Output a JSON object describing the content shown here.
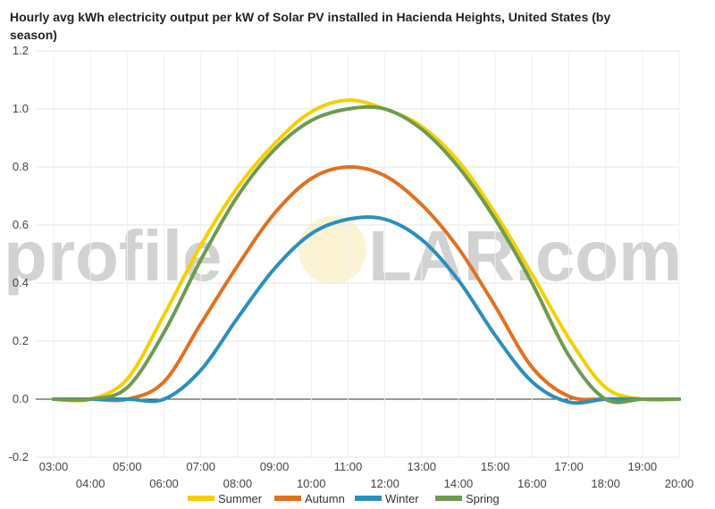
{
  "chart_data": {
    "type": "line",
    "title": "Hourly avg kWh electricity output per kW of Solar PV installed in Hacienda Heights, United States (by season)",
    "xlabel": "",
    "ylabel": "",
    "ylim": [
      -0.2,
      1.2
    ],
    "yticks": [
      "-0.2",
      "0.0",
      "0.2",
      "0.4",
      "0.6",
      "0.8",
      "1.0",
      "1.2"
    ],
    "x": [
      "03:00",
      "04:00",
      "05:00",
      "06:00",
      "07:00",
      "08:00",
      "09:00",
      "10:00",
      "11:00",
      "12:00",
      "13:00",
      "14:00",
      "15:00",
      "16:00",
      "17:00",
      "18:00",
      "19:00",
      "20:00"
    ],
    "grid": true,
    "legend_position": "bottom",
    "series": [
      {
        "name": "Summer",
        "color": "#f5d000",
        "values": [
          0.0,
          0.0,
          0.07,
          0.29,
          0.53,
          0.73,
          0.88,
          0.99,
          1.03,
          1.0,
          0.94,
          0.82,
          0.64,
          0.43,
          0.21,
          0.04,
          0.0,
          0.0
        ]
      },
      {
        "name": "Autumn",
        "color": "#e2701f",
        "values": [
          0.0,
          0.0,
          0.0,
          0.06,
          0.26,
          0.46,
          0.64,
          0.76,
          0.8,
          0.77,
          0.67,
          0.52,
          0.32,
          0.11,
          0.01,
          0.0,
          0.0,
          0.0
        ]
      },
      {
        "name": "Winter",
        "color": "#2b8fbc",
        "values": [
          0.0,
          0.0,
          0.0,
          0.0,
          0.1,
          0.28,
          0.45,
          0.57,
          0.62,
          0.62,
          0.55,
          0.41,
          0.22,
          0.06,
          -0.01,
          0.0,
          0.0,
          0.0
        ]
      },
      {
        "name": "Spring",
        "color": "#6e9a52",
        "values": [
          0.0,
          0.0,
          0.04,
          0.23,
          0.48,
          0.7,
          0.86,
          0.96,
          1.0,
          1.0,
          0.93,
          0.8,
          0.62,
          0.4,
          0.15,
          0.0,
          0.0,
          0.0
        ]
      }
    ]
  },
  "watermark": {
    "left": "profile",
    "right": "LAR.com"
  }
}
